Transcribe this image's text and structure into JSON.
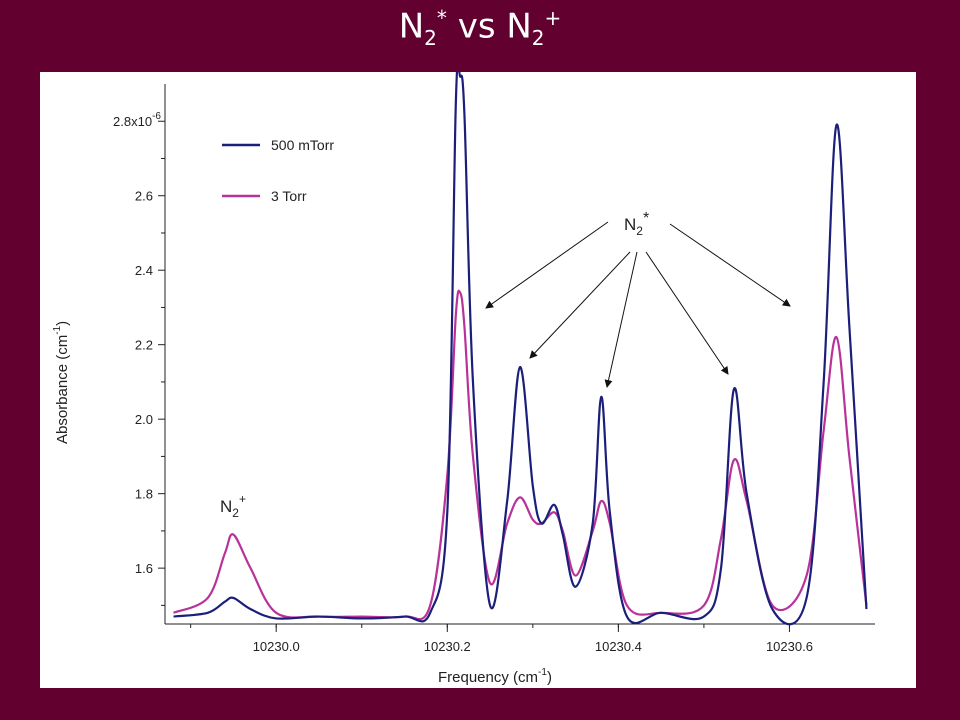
{
  "slide": {
    "title_base1": "N",
    "title_sub1": "2",
    "title_sup1": "*",
    "title_mid": " vs ",
    "title_base2": "N",
    "title_sub2": "2",
    "title_sup2": "+"
  },
  "colors": {
    "background": "#62002f",
    "series_500mTorr": "#1b1f7a",
    "series_3Torr": "#b8329a"
  },
  "chart_data": {
    "type": "line",
    "xlabel": "Frequency (cm",
    "xlabel_sup": "-1",
    "xlabel_end": ")",
    "ylabel": "Absorbance (cm",
    "ylabel_sup": "-1",
    "ylabel_end": ")",
    "xlim": [
      10229.87,
      10230.7
    ],
    "ylim": [
      1.45,
      2.9
    ],
    "x_ticks": [
      10230.0,
      10230.2,
      10230.4,
      10230.6
    ],
    "x_tick_labels": [
      "10230.0",
      "10230.2",
      "10230.4",
      "10230.6"
    ],
    "y_ticks": [
      1.6,
      1.8,
      2.0,
      2.2,
      2.4,
      2.6,
      2.8
    ],
    "y_tick_labels": [
      "1.6",
      "1.8",
      "2.0",
      "2.2",
      "2.4",
      "2.6",
      "2.8x10"
    ],
    "y_top_exponent": "-6",
    "legend_position": "top-left",
    "grid": false,
    "series": [
      {
        "name": "500 mTorr",
        "color": "#1b1f7a",
        "x": [
          10229.88,
          10229.92,
          10229.94,
          10229.95,
          10229.97,
          10230.0,
          10230.05,
          10230.1,
          10230.15,
          10230.18,
          10230.2,
          10230.21,
          10230.215,
          10230.22,
          10230.23,
          10230.25,
          10230.27,
          10230.285,
          10230.3,
          10230.31,
          10230.325,
          10230.335,
          10230.35,
          10230.37,
          10230.38,
          10230.39,
          10230.41,
          10230.45,
          10230.5,
          10230.52,
          10230.535,
          10230.55,
          10230.58,
          10230.62,
          10230.64,
          10230.655,
          10230.67,
          10230.69
        ],
        "y": [
          1.47,
          1.48,
          1.51,
          1.52,
          1.49,
          1.465,
          1.47,
          1.465,
          1.47,
          1.48,
          1.75,
          2.85,
          2.92,
          2.82,
          2.1,
          1.5,
          1.78,
          2.14,
          1.82,
          1.72,
          1.77,
          1.69,
          1.55,
          1.72,
          2.06,
          1.75,
          1.47,
          1.48,
          1.47,
          1.6,
          2.08,
          1.8,
          1.49,
          1.52,
          2.1,
          2.79,
          2.25,
          1.49
        ]
      },
      {
        "name": "3 Torr",
        "color": "#b8329a",
        "x": [
          10229.88,
          10229.92,
          10229.94,
          10229.95,
          10229.97,
          10230.0,
          10230.05,
          10230.1,
          10230.15,
          10230.18,
          10230.2,
          10230.21,
          10230.215,
          10230.22,
          10230.23,
          10230.25,
          10230.27,
          10230.285,
          10230.3,
          10230.31,
          10230.325,
          10230.335,
          10230.35,
          10230.37,
          10230.38,
          10230.39,
          10230.41,
          10230.45,
          10230.5,
          10230.52,
          10230.535,
          10230.55,
          10230.58,
          10230.62,
          10230.64,
          10230.655,
          10230.67,
          10230.69
        ],
        "y": [
          1.48,
          1.52,
          1.64,
          1.69,
          1.6,
          1.48,
          1.47,
          1.47,
          1.47,
          1.5,
          1.85,
          2.28,
          2.34,
          2.25,
          1.9,
          1.56,
          1.72,
          1.79,
          1.73,
          1.72,
          1.75,
          1.7,
          1.58,
          1.7,
          1.78,
          1.72,
          1.5,
          1.48,
          1.5,
          1.68,
          1.89,
          1.78,
          1.5,
          1.58,
          1.97,
          2.22,
          1.9,
          1.5
        ]
      }
    ],
    "annotations": [
      {
        "label_base": "N",
        "label_sub": "2",
        "label_sup": "+"
      },
      {
        "label_base": "N",
        "label_sub": "2",
        "label_sup": "*"
      }
    ]
  }
}
